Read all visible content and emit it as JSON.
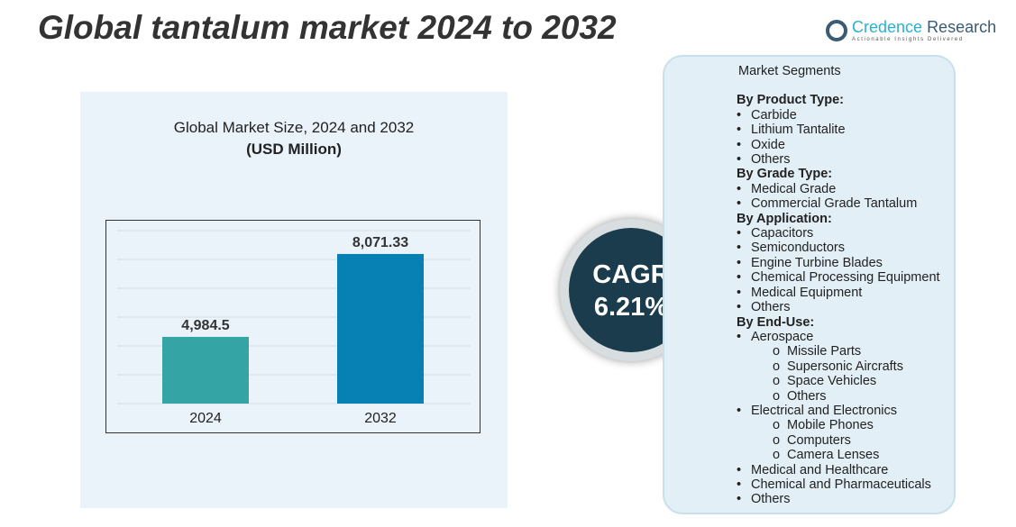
{
  "title": "Global tantalum market 2024 to 2032",
  "logo": {
    "name1": "Credence",
    "name2": "Research",
    "tagline": "Actionable Insights Delivered"
  },
  "chart_data": {
    "type": "bar",
    "title": "Global Market Size, 2024 and 2032",
    "unit": "(USD Million)",
    "categories": [
      "2024",
      "2032"
    ],
    "values": [
      4984.5,
      8071.33
    ],
    "labels": [
      "4,984.5",
      "8,071.33"
    ],
    "colors": [
      "#35a4a4",
      "#0781b4"
    ],
    "grid": true
  },
  "cagr": {
    "label": "CAGR",
    "value": "6.21%"
  },
  "segments": {
    "heading": "Market Segments",
    "groups": [
      {
        "title": "By Product Type:",
        "items": [
          {
            "t": "Carbide"
          },
          {
            "t": "Lithium Tantalite"
          },
          {
            "t": "Oxide"
          },
          {
            "t": "Others"
          }
        ]
      },
      {
        "title": "By Grade Type:",
        "items": [
          {
            "t": "Medical Grade"
          },
          {
            "t": "Commercial Grade Tantalum"
          }
        ]
      },
      {
        "title": "By Application:",
        "items": [
          {
            "t": "Capacitors"
          },
          {
            "t": "Semiconductors"
          },
          {
            "t": "Engine Turbine Blades"
          },
          {
            "t": "Chemical Processing Equipment"
          },
          {
            "t": "Medical Equipment"
          },
          {
            "t": "Others"
          }
        ]
      },
      {
        "title": "By End-Use:",
        "items": [
          {
            "t": "Aerospace",
            "subs": [
              "Missile Parts",
              "Supersonic Aircrafts",
              "Space Vehicles",
              "Others"
            ]
          },
          {
            "t": "Electrical and Electronics",
            "subs": [
              "Mobile Phones",
              "Computers",
              "Camera Lenses"
            ]
          },
          {
            "t": "Medical and Healthcare"
          },
          {
            "t": "Chemical and Pharmaceuticals"
          },
          {
            "t": "Others"
          }
        ]
      }
    ]
  }
}
